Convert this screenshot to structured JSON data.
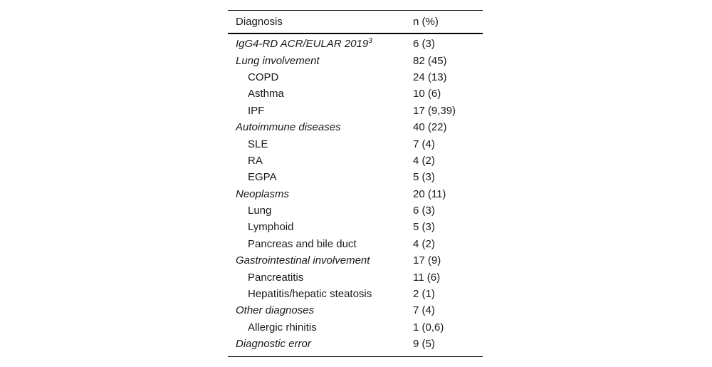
{
  "page": {
    "background": "#ffffff",
    "text_color": "#1a1a1a",
    "rule_color": "#000000"
  },
  "table": {
    "columns": [
      "Diagnosis",
      "n (%)"
    ],
    "rows": [
      {
        "label": "IgG4-RD ACR/EULAR 2019",
        "sup": "3",
        "value": "6 (3)",
        "level": "category"
      },
      {
        "label": "Lung involvement",
        "value": "82 (45)",
        "level": "category"
      },
      {
        "label": "COPD",
        "value": "24 (13)",
        "level": "sub"
      },
      {
        "label": "Asthma",
        "value": "10 (6)",
        "level": "sub"
      },
      {
        "label": "IPF",
        "value": "17 (9,39)",
        "level": "sub"
      },
      {
        "label": "Autoimmune diseases",
        "value": "40 (22)",
        "level": "category"
      },
      {
        "label": "SLE",
        "value": "7 (4)",
        "level": "sub"
      },
      {
        "label": "RA",
        "value": "4 (2)",
        "level": "sub"
      },
      {
        "label": "EGPA",
        "value": "5 (3)",
        "level": "sub"
      },
      {
        "label": "Neoplasms",
        "value": "20 (11)",
        "level": "category"
      },
      {
        "label": "Lung",
        "value": "6 (3)",
        "level": "sub"
      },
      {
        "label": "Lymphoid",
        "value": "5 (3)",
        "level": "sub"
      },
      {
        "label": "Pancreas and bile duct",
        "value": "4 (2)",
        "level": "sub"
      },
      {
        "label": "Gastrointestinal involvement",
        "value": "17 (9)",
        "level": "category"
      },
      {
        "label": "Pancreatitis",
        "value": "11 (6)",
        "level": "sub"
      },
      {
        "label": "Hepatitis/hepatic steatosis",
        "value": "2 (1)",
        "level": "sub"
      },
      {
        "label": "Other diagnoses",
        "value": "7 (4)",
        "level": "category"
      },
      {
        "label": "Allergic rhinitis",
        "value": "1 (0,6)",
        "level": "sub"
      },
      {
        "label": "Diagnostic error",
        "value": "9 (5)",
        "level": "category"
      }
    ]
  }
}
